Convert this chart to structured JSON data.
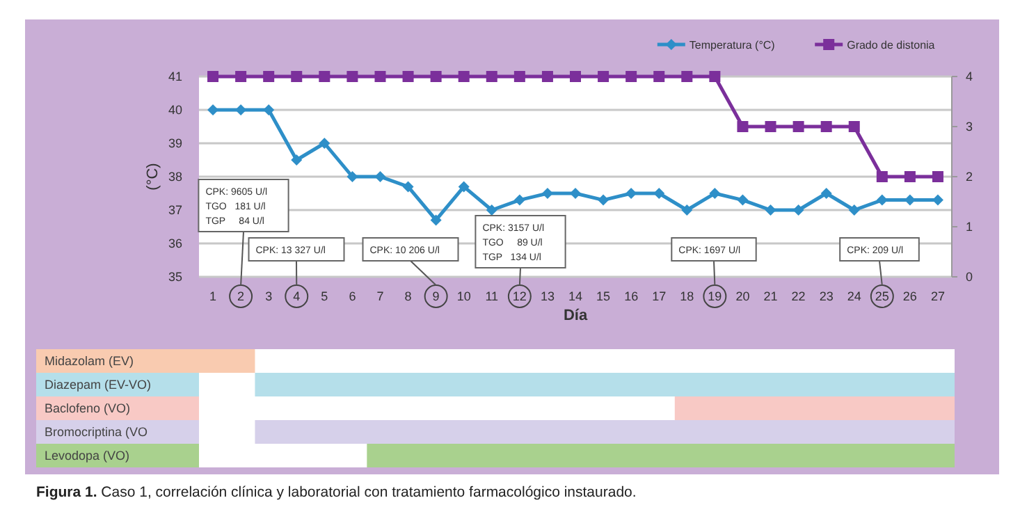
{
  "chart_data": [
    {
      "type": "line",
      "xlabel": "Día",
      "ylabel": "(°C)",
      "x": [
        1,
        2,
        3,
        4,
        5,
        6,
        7,
        8,
        9,
        10,
        11,
        12,
        13,
        14,
        15,
        16,
        17,
        18,
        19,
        20,
        21,
        22,
        23,
        24,
        25,
        26,
        27
      ],
      "xlim": [
        0.5,
        27.5
      ],
      "xticks": [
        1,
        2,
        3,
        4,
        5,
        6,
        7,
        8,
        9,
        10,
        11,
        12,
        13,
        14,
        15,
        16,
        17,
        18,
        19,
        20,
        21,
        22,
        23,
        24,
        25,
        26,
        27
      ],
      "ylim": [
        35,
        41
      ],
      "yticks": [
        35,
        36,
        37,
        38,
        39,
        40,
        41
      ],
      "y2lim": [
        0,
        4
      ],
      "y2ticks": [
        0,
        1,
        2,
        3,
        4
      ],
      "grid": "y",
      "legend": "top right",
      "series": [
        {
          "name": "Temperatura (°C)",
          "color": "#2e8fc8",
          "marker": "diamond",
          "values": [
            40,
            40,
            40,
            38.5,
            39,
            38,
            38,
            37.7,
            36.7,
            37.7,
            37,
            37.3,
            37.5,
            37.5,
            37.3,
            37.5,
            37.5,
            37,
            37.5,
            37.3,
            37,
            37,
            37.5,
            37,
            37.3,
            37.3,
            37.3
          ]
        },
        {
          "name": "Grado de distonia",
          "color": "#7b2f9b",
          "marker": "square",
          "axis": "y2",
          "values": [
            4,
            4,
            4,
            4,
            4,
            4,
            4,
            4,
            4,
            4,
            4,
            4,
            4,
            4,
            4,
            4,
            4,
            4,
            4,
            3,
            3,
            3,
            3,
            3,
            2,
            2,
            2
          ]
        }
      ],
      "annotations": [
        "CPK: 9605 U/l\nTGO   181 U/l\nTGP     84 U/l",
        "CPK: 13 327 U/l",
        "CPK: 10 206 U/l",
        "CPK: 3157 U/l\nTGO     89 U/l\nTGP   134 U/l",
        "CPK: 1697 U/l",
        "CPK: 209 U/l"
      ]
    },
    {
      "type": "bar",
      "orientation": "horizontal",
      "categories": [
        "Midazolam (EV)",
        "Diazepam (EV-VO)",
        "Baclofeno (VO)",
        "Bromocriptina (VO",
        "Levodopa (VO)"
      ],
      "base": [
        0.5,
        2.5,
        17.5,
        2.5,
        6.5
      ],
      "values": [
        2,
        25,
        10,
        25,
        21
      ],
      "colors": [
        "#f9cbb0",
        "#b5dfea",
        "#f8c9c5",
        "#d6d0ea",
        "#a9d18e"
      ],
      "xlim": [
        0.5,
        27.5
      ],
      "tick_labels": "y",
      "annotations": [
        "Figura 1. Caso 1, correlación clínica y laboratorial con tratamiento farmacológico instaurado."
      ]
    }
  ]
}
